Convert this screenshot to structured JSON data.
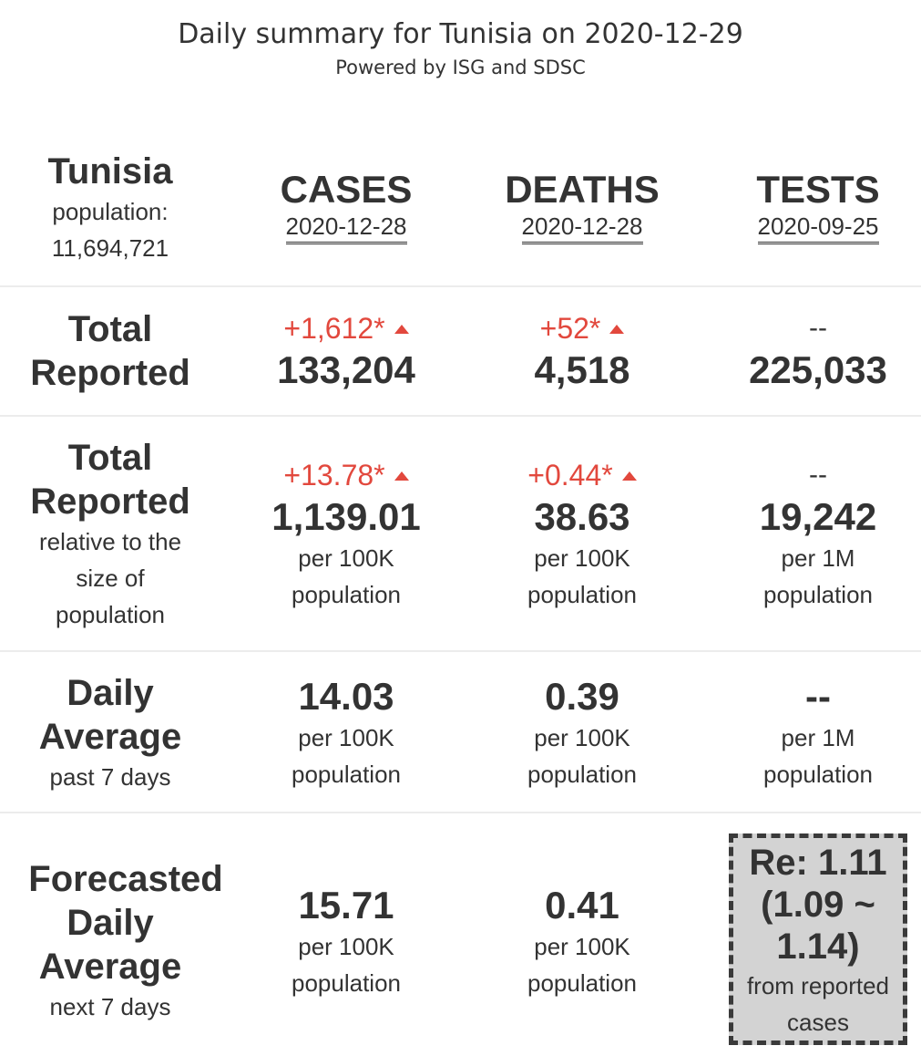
{
  "header": {
    "title": "Daily summary for Tunisia on 2020-12-29",
    "subtitle": "Powered by ISG and SDSC"
  },
  "country": {
    "name": "Tunisia",
    "population_label": "population:",
    "population_value": "11,694,721"
  },
  "columns": {
    "cases": {
      "label": "CASES",
      "date": "2020-12-28"
    },
    "deaths": {
      "label": "DEATHS",
      "date": "2020-12-28"
    },
    "tests": {
      "label": "TESTS",
      "date": "2020-09-25"
    }
  },
  "rows": {
    "total": {
      "label_line1": "Total",
      "label_line2": "Reported",
      "cases": {
        "delta": "+1,612*",
        "value": "133,204"
      },
      "deaths": {
        "delta": "+52*",
        "value": "4,518"
      },
      "tests": {
        "delta": "--",
        "value": "225,033"
      }
    },
    "relative": {
      "label_line1": "Total",
      "label_line2": "Reported",
      "sub_line1": "relative to the",
      "sub_line2": "size of",
      "sub_line3": "population",
      "cases": {
        "delta": "+13.78*",
        "value": "1,139.01",
        "unit1": "per 100K",
        "unit2": "population"
      },
      "deaths": {
        "delta": "+0.44*",
        "value": "38.63",
        "unit1": "per 100K",
        "unit2": "population"
      },
      "tests": {
        "delta": "--",
        "value": "19,242",
        "unit1": "per 1M",
        "unit2": "population"
      }
    },
    "daily": {
      "label_line1": "Daily",
      "label_line2": "Average",
      "sub_line1": "past 7 days",
      "cases": {
        "value": "14.03",
        "unit1": "per 100K",
        "unit2": "population"
      },
      "deaths": {
        "value": "0.39",
        "unit1": "per 100K",
        "unit2": "population"
      },
      "tests": {
        "value": "--",
        "unit1": "per 1M",
        "unit2": "population"
      }
    },
    "forecast": {
      "label_line1": "Forecasted",
      "label_line2": "Daily",
      "label_line3": "Average",
      "sub_line1": "next 7 days",
      "cases": {
        "value": "15.71",
        "unit1": "per 100K",
        "unit2": "population"
      },
      "deaths": {
        "value": "0.41",
        "unit1": "per 100K",
        "unit2": "population"
      },
      "re": {
        "line1": "Re: 1.11",
        "line2": "(1.09 ~",
        "line3": "1.14)",
        "sub1": "from reported",
        "sub2": "cases"
      }
    }
  },
  "colors": {
    "increase": "#e2483d",
    "text": "#333333",
    "divider": "#ececec",
    "re_box": "#d3d3d3"
  },
  "icons": {
    "increase": "triangle-up-icon"
  }
}
